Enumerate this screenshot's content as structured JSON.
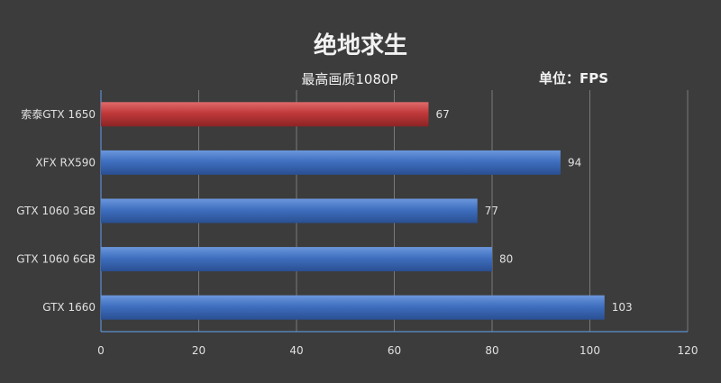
{
  "chart_data": {
    "type": "bar",
    "orientation": "horizontal",
    "title": "绝地求生",
    "subtitle": "最高画质1080P",
    "unit_label": "单位：FPS",
    "categories": [
      "索泰GTX 1650",
      "XFX RX590",
      "GTX 1060 3GB",
      "GTX 1060 6GB",
      "GTX 1660"
    ],
    "values": [
      67,
      94,
      77,
      80,
      103
    ],
    "highlight_index": 0,
    "x_ticks": [
      "0",
      "20",
      "40",
      "60",
      "80",
      "100",
      "120"
    ],
    "xlim": [
      0,
      120
    ],
    "grid": true,
    "colors": {
      "highlight": "#c0393a",
      "bar": "#3f6fbf",
      "background": "#3c3c3c",
      "grid": "#7a7a7a",
      "axis": "#5b8fd0"
    }
  }
}
